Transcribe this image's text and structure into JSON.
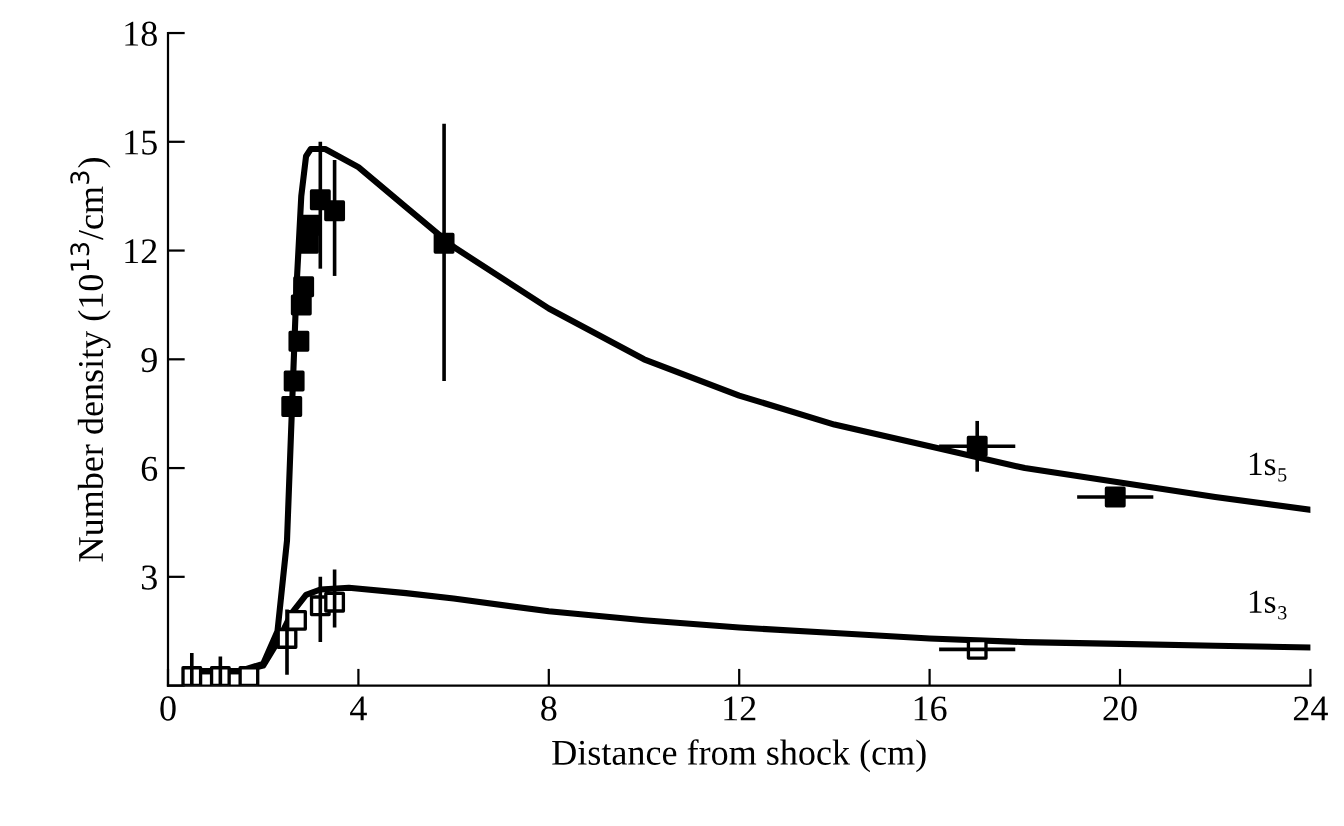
{
  "chart_data": {
    "type": "scatter",
    "xlabel": "Distance from shock (cm)",
    "ylabel": "Number density (10$^{13}$/cm$^{3}$)",
    "xlim": [
      0,
      24
    ],
    "ylim": [
      0,
      18
    ],
    "xticks": [
      0,
      4,
      8,
      12,
      16,
      20,
      24
    ],
    "yticks": [
      {
        "value": 0,
        "label": null
      },
      3,
      6,
      9,
      12,
      15,
      18
    ],
    "grid": false,
    "legend": false,
    "series": [
      {
        "type": "line",
        "name": "1s₅",
        "color": "#000000",
        "line_style": "solid",
        "marker": "none",
        "x": [
          0.5,
          1.5,
          2.0,
          2.3,
          2.5,
          2.6,
          2.7,
          2.8,
          2.9,
          3.0,
          3.3,
          4,
          5,
          6,
          8,
          10,
          12,
          14,
          16,
          18,
          20,
          22,
          24
        ],
        "values": [
          0.4,
          0.4,
          0.6,
          1.5,
          4,
          7.5,
          11,
          13.5,
          14.6,
          14.8,
          14.8,
          14.3,
          13.2,
          12.1,
          10.4,
          9.0,
          8.0,
          7.2,
          6.6,
          6.0,
          5.6,
          5.2,
          4.85
        ]
      },
      {
        "type": "line",
        "name": "1s₃",
        "color": "#000000",
        "line_style": "solid",
        "marker": "none",
        "x": [
          0.5,
          1.5,
          2.0,
          2.3,
          2.6,
          2.9,
          3.2,
          3.8,
          5,
          6,
          8,
          10,
          12,
          14,
          16,
          18,
          20,
          22,
          24
        ],
        "values": [
          0.4,
          0.4,
          0.55,
          1.2,
          2.0,
          2.5,
          2.65,
          2.7,
          2.55,
          2.4,
          2.05,
          1.8,
          1.6,
          1.45,
          1.3,
          1.2,
          1.15,
          1.1,
          1.05
        ]
      },
      {
        "color": "#000000",
        "marker": "square",
        "x": [
          2.6,
          2.65,
          2.75,
          2.8,
          2.85,
          2.95,
          3.0,
          3.2,
          3.5,
          5.8,
          17.0,
          19.9
        ],
        "values": [
          7.7,
          8.4,
          9.5,
          10.5,
          11.0,
          12.2,
          12.7,
          13.4,
          13.1,
          12.2,
          6.6,
          5.2
        ],
        "errors": [
          null,
          null,
          null,
          null,
          null,
          null,
          null,
          [
            11.5,
            15.0
          ],
          [
            11.3,
            14.5
          ],
          [
            8.4,
            15.5
          ],
          [
            5.9,
            7.3
          ],
          null
        ],
        "xerrors": [
          null,
          null,
          null,
          null,
          null,
          null,
          null,
          null,
          null,
          null,
          [
            16.2,
            17.8
          ],
          [
            19.1,
            20.7
          ]
        ]
      },
      {
        "color": "#ffffff",
        "marker": "square",
        "x": [
          0.5,
          1.1,
          1.7,
          2.5,
          2.7,
          3.2,
          3.5,
          17.0
        ],
        "values": [
          0.25,
          0.25,
          0.25,
          1.3,
          1.8,
          2.2,
          2.3,
          1.0
        ],
        "errors": [
          [
            0,
            0.9
          ],
          [
            0,
            0.8
          ],
          null,
          [
            0.3,
            2.1
          ],
          null,
          [
            1.2,
            3.0
          ],
          [
            1.6,
            3.2
          ],
          null
        ],
        "xerrors": [
          null,
          null,
          null,
          null,
          null,
          null,
          null,
          [
            16.2,
            17.8
          ]
        ]
      }
    ]
  }
}
